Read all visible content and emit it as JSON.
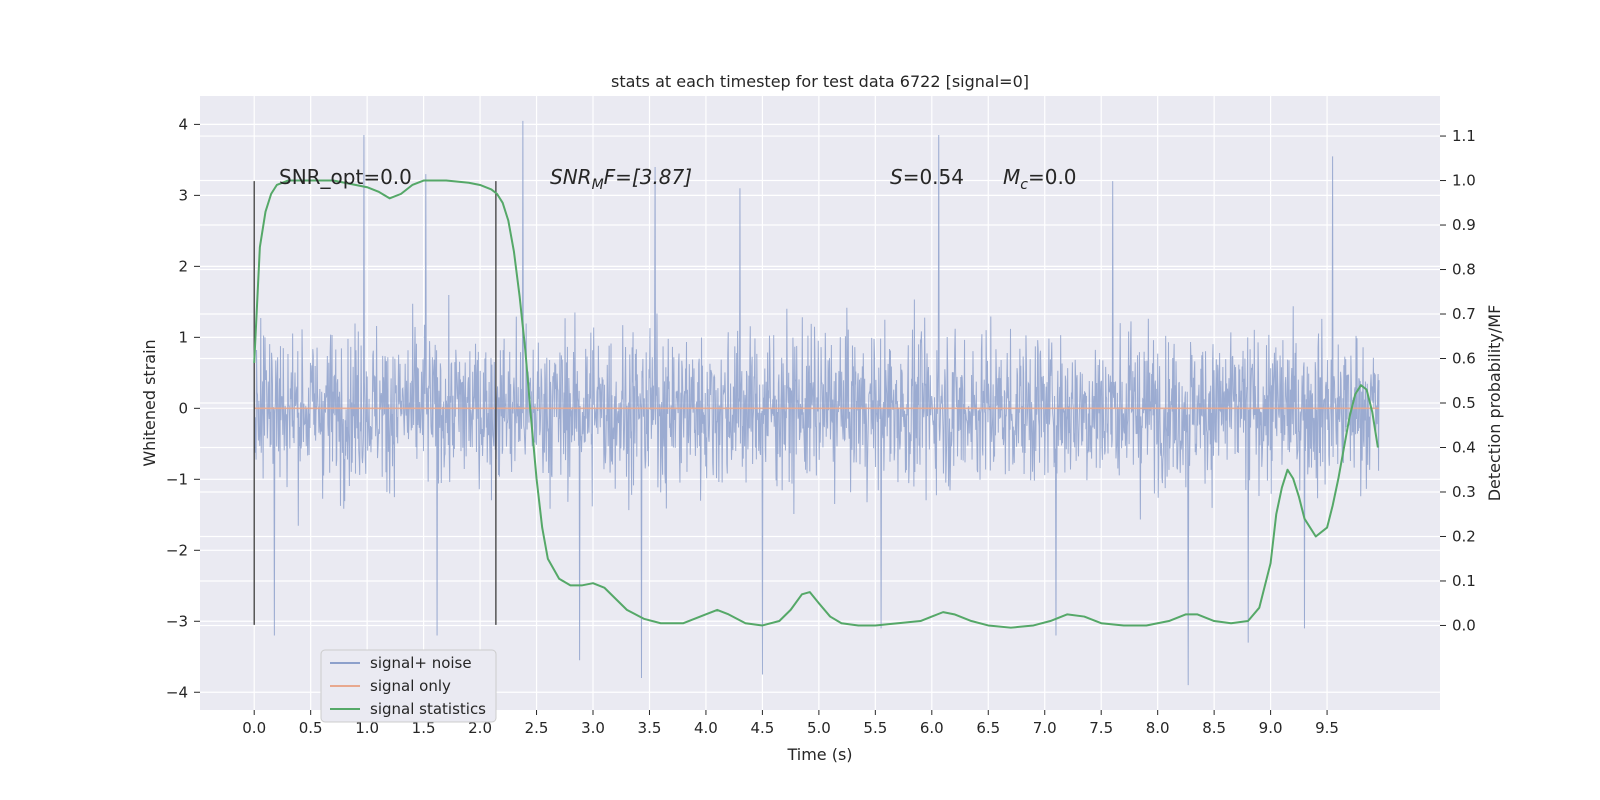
{
  "chart_data": {
    "type": "line",
    "title": "stats at each timestep for test data 6722 [signal=0]",
    "xlabel": "Time (s)",
    "ylabel": "Whitened strain",
    "ylabel_right": "Detection probability/MF",
    "xlim": [
      -0.48,
      10.5
    ],
    "ylim": [
      -4.25,
      4.4
    ],
    "ylim_right": [
      -0.19,
      1.19
    ],
    "x_ticks": [
      0.0,
      0.5,
      1.0,
      1.5,
      2.0,
      2.5,
      3.0,
      3.5,
      4.0,
      4.5,
      5.0,
      5.5,
      6.0,
      6.5,
      7.0,
      7.5,
      8.0,
      8.5,
      9.0,
      9.5
    ],
    "x_tick_labels": [
      "0.0",
      "0.5",
      "1.0",
      "1.5",
      "2.0",
      "2.5",
      "3.0",
      "3.5",
      "4.0",
      "4.5",
      "5.0",
      "5.5",
      "6.0",
      "6.5",
      "7.0",
      "7.5",
      "8.0",
      "8.5",
      "9.0",
      "9.5"
    ],
    "y_ticks": [
      4,
      3,
      2,
      1,
      0,
      -1,
      -2,
      -3,
      -4
    ],
    "y_tick_labels": [
      "4",
      "3",
      "2",
      "1",
      "0",
      "−1",
      "−2",
      "−3",
      "−4"
    ],
    "y_right_ticks": [
      1.1,
      1.0,
      0.9,
      0.8,
      0.7,
      0.6,
      0.5,
      0.4,
      0.3,
      0.2,
      0.1,
      0.0
    ],
    "y_right_tick_labels": [
      "1.1",
      "1.0",
      "0.9",
      "0.8",
      "0.7",
      "0.6",
      "0.5",
      "0.4",
      "0.3",
      "0.2",
      "0.1",
      "0.0"
    ],
    "grid": true,
    "legend_position": "lower-left",
    "annotations": {
      "snr_opt": "SNR_opt=0.0",
      "snr_mf_main": "SNR",
      "snr_mf_sub": "M",
      "snr_mf_rest": "F=[3.87]",
      "s_main": "S",
      "s_rest": "=0.54",
      "mc_main": "M",
      "mc_sub": "c",
      "mc_rest": "=0.0"
    },
    "markers": [
      {
        "x": 0.0,
        "y_range": [
          -3.05,
          3.2
        ]
      },
      {
        "x": 2.14,
        "y_range": [
          -3.05,
          3.2
        ]
      }
    ],
    "noise_profile": {
      "t_range": [
        0.0,
        9.96
      ],
      "typical_range": [
        -2.0,
        2.0
      ],
      "peaks_high": [
        [
          0.97,
          3.85
        ],
        [
          1.52,
          3.3
        ],
        [
          2.38,
          4.05
        ],
        [
          3.55,
          3.4
        ],
        [
          4.3,
          3.1
        ],
        [
          6.06,
          3.85
        ],
        [
          7.6,
          3.2
        ],
        [
          9.55,
          3.55
        ]
      ],
      "peaks_low": [
        [
          0.18,
          -3.2
        ],
        [
          1.62,
          -3.2
        ],
        [
          2.88,
          -3.55
        ],
        [
          3.43,
          -3.8
        ],
        [
          4.5,
          -3.75
        ],
        [
          5.55,
          -3.1
        ],
        [
          7.1,
          -3.2
        ],
        [
          8.27,
          -3.9
        ],
        [
          8.8,
          -3.3
        ],
        [
          9.3,
          -3.1
        ]
      ]
    },
    "series": [
      {
        "name": "signal+ noise",
        "color": "#8da0cb",
        "description_type": "noisy-strain"
      },
      {
        "name": "signal only",
        "color": "#e8a88e",
        "x": [
          0.0,
          9.96
        ],
        "values": [
          0.0,
          0.0
        ]
      },
      {
        "name": "signal statistics",
        "color": "#55a868",
        "axis": "right",
        "x": [
          0.0,
          0.05,
          0.1,
          0.15,
          0.2,
          0.3,
          0.5,
          0.7,
          0.9,
          1.0,
          1.1,
          1.2,
          1.3,
          1.4,
          1.5,
          1.7,
          1.9,
          2.0,
          2.1,
          2.15,
          2.2,
          2.25,
          2.3,
          2.35,
          2.4,
          2.45,
          2.5,
          2.55,
          2.6,
          2.7,
          2.8,
          2.9,
          3.0,
          3.1,
          3.2,
          3.3,
          3.45,
          3.6,
          3.8,
          4.0,
          4.1,
          4.2,
          4.35,
          4.5,
          4.65,
          4.75,
          4.85,
          4.92,
          5.0,
          5.1,
          5.2,
          5.35,
          5.5,
          5.7,
          5.9,
          6.0,
          6.1,
          6.2,
          6.35,
          6.5,
          6.7,
          6.9,
          7.05,
          7.2,
          7.35,
          7.5,
          7.7,
          7.9,
          8.1,
          8.25,
          8.35,
          8.5,
          8.65,
          8.8,
          8.9,
          9.0,
          9.05,
          9.1,
          9.15,
          9.2,
          9.25,
          9.3,
          9.4,
          9.5,
          9.55,
          9.6,
          9.65,
          9.7,
          9.75,
          9.8,
          9.85,
          9.9,
          9.95
        ],
        "values": [
          0.59,
          0.85,
          0.93,
          0.97,
          0.99,
          1.0,
          1.0,
          1.0,
          0.99,
          0.985,
          0.975,
          0.96,
          0.97,
          0.99,
          1.0,
          1.0,
          0.995,
          0.99,
          0.98,
          0.97,
          0.95,
          0.91,
          0.84,
          0.74,
          0.62,
          0.47,
          0.33,
          0.22,
          0.15,
          0.105,
          0.09,
          0.09,
          0.095,
          0.085,
          0.06,
          0.035,
          0.015,
          0.005,
          0.005,
          0.025,
          0.035,
          0.025,
          0.005,
          0.0,
          0.01,
          0.035,
          0.07,
          0.075,
          0.05,
          0.02,
          0.005,
          0.0,
          0.0,
          0.005,
          0.01,
          0.02,
          0.03,
          0.025,
          0.01,
          0.0,
          -0.005,
          0.0,
          0.01,
          0.025,
          0.02,
          0.005,
          0.0,
          0.0,
          0.01,
          0.025,
          0.025,
          0.01,
          0.005,
          0.01,
          0.04,
          0.14,
          0.25,
          0.31,
          0.35,
          0.33,
          0.29,
          0.24,
          0.2,
          0.22,
          0.27,
          0.33,
          0.4,
          0.47,
          0.52,
          0.54,
          0.53,
          0.48,
          0.4
        ]
      }
    ]
  }
}
